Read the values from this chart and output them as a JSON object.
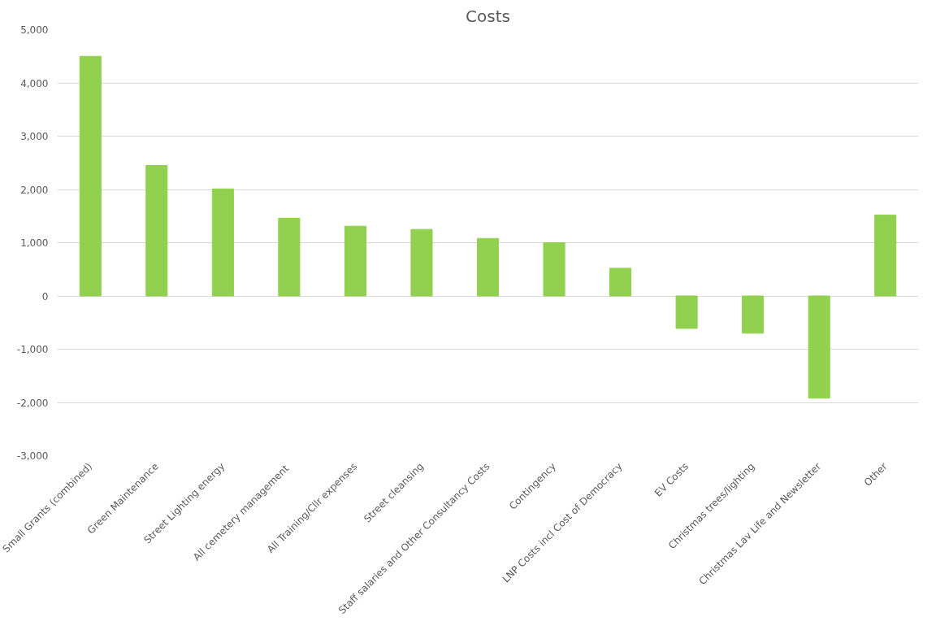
{
  "chart_data": {
    "type": "bar",
    "title": "Costs",
    "categories": [
      "Small Grants (combined)",
      "Green Maintenance",
      "Street Lighting energy",
      "All  cemetery management",
      "All Training/Cllr expenses",
      "Street cleansing",
      "Staff salaries and Other Consultancy Costs",
      "Contingency",
      "LNP Costs incl Cost of Democracy",
      "EV Costs",
      "Christmas trees/lighting",
      "Christmas Lav Life and Newsletter",
      "Other"
    ],
    "values": [
      4500,
      2450,
      2010,
      1460,
      1310,
      1250,
      1080,
      1000,
      520,
      -610,
      -700,
      -1920,
      1520
    ],
    "color": "#92d050",
    "ylim": [
      -3000,
      5000
    ],
    "yticks": [
      {
        "value": -3000,
        "label": "-3,000"
      },
      {
        "value": -2000,
        "label": "-2,000"
      },
      {
        "value": -1000,
        "label": "-1,000"
      },
      0,
      {
        "value": 1000,
        "label": "1,000"
      },
      {
        "value": 2000,
        "label": "2,000"
      },
      {
        "value": 3000,
        "label": "3,000"
      },
      {
        "value": 4000,
        "label": "4,000"
      },
      {
        "value": 5000,
        "label": "5,000"
      }
    ],
    "grid": "y"
  }
}
